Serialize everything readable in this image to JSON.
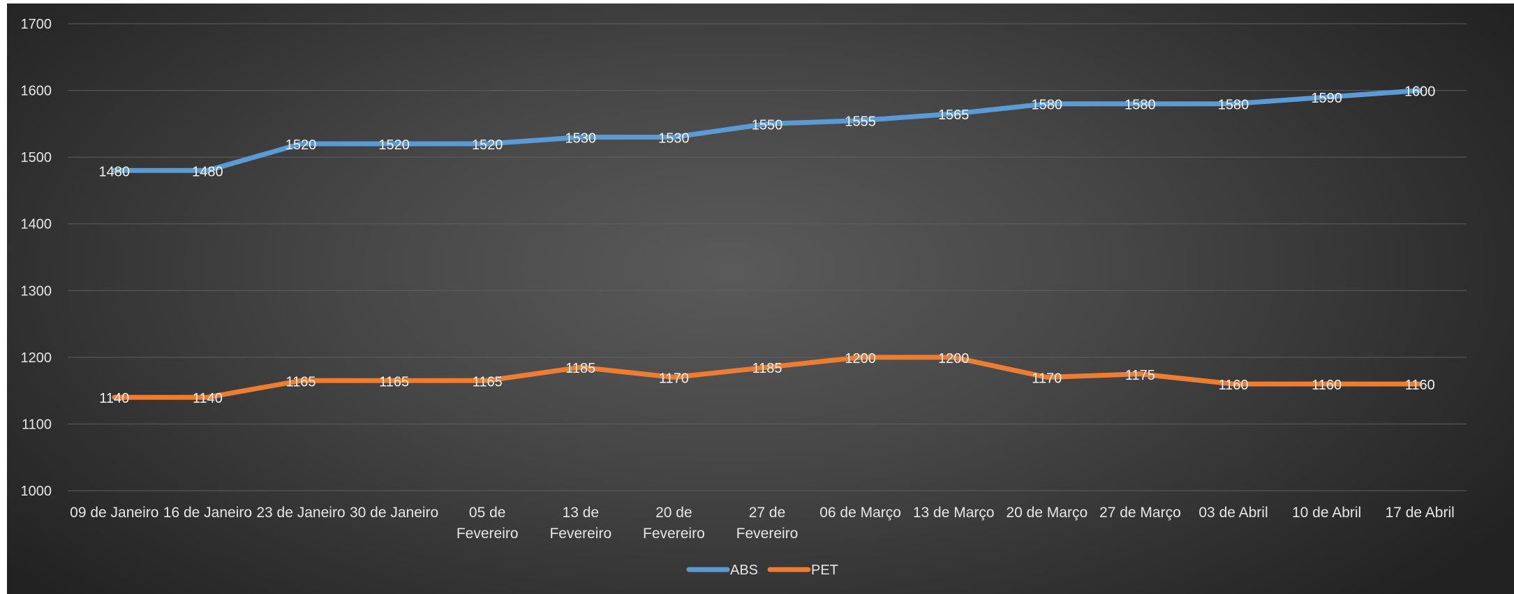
{
  "chart_data": {
    "type": "line",
    "title": "",
    "xlabel": "",
    "ylabel": "",
    "ylim": [
      1000,
      1700
    ],
    "yticks": [
      "1000",
      "1100",
      "1200",
      "1300",
      "1400",
      "1500",
      "1600",
      "1700"
    ],
    "grid": true,
    "legend_position": "bottom",
    "categories": [
      "09 de Janeiro",
      "16 de Janeiro",
      "23 de Janeiro",
      "30 de Janeiro",
      "05 de Fevereiro",
      "13 de Fevereiro",
      "20 de Fevereiro",
      "27 de Fevereiro",
      "06 de Março",
      "13 de Março",
      "20 de Março",
      "27 de Março",
      "03 de Abril",
      "10 de Abril",
      "17 de Abril"
    ],
    "series": [
      {
        "name": "ABS",
        "color": "#5b9bd5",
        "values": [
          1480,
          1480,
          1520,
          1520,
          1520,
          1530,
          1530,
          1550,
          1555,
          1565,
          1580,
          1580,
          1580,
          1590,
          1600
        ]
      },
      {
        "name": "PET",
        "color": "#ed7d31",
        "values": [
          1140,
          1140,
          1165,
          1165,
          1165,
          1185,
          1170,
          1185,
          1200,
          1200,
          1170,
          1175,
          1160,
          1160,
          1160
        ]
      }
    ]
  }
}
